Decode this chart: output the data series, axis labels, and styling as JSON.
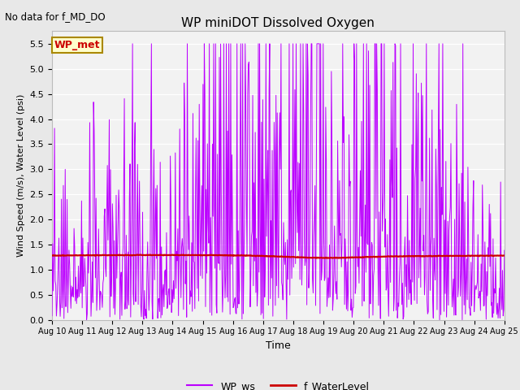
{
  "title": "WP miniDOT Dissolved Oxygen",
  "annotation": "No data for f_MD_DO",
  "xlabel": "Time",
  "ylabel": "Wind Speed (m/s), Water Level (psi)",
  "ylim": [
    0.0,
    5.75
  ],
  "yticks": [
    0.0,
    0.5,
    1.0,
    1.5,
    2.0,
    2.5,
    3.0,
    3.5,
    4.0,
    4.5,
    5.0,
    5.5
  ],
  "xtick_labels": [
    "Aug 10",
    "Aug 11",
    "Aug 12",
    "Aug 13",
    "Aug 14",
    "Aug 15",
    "Aug 16",
    "Aug 17",
    "Aug 18",
    "Aug 19",
    "Aug 20",
    "Aug 21",
    "Aug 22",
    "Aug 23",
    "Aug 24",
    "Aug 25"
  ],
  "legend_labels": [
    "WP_ws",
    "f_WaterLevel"
  ],
  "legend_colors": [
    "#BB00FF",
    "#CC0000"
  ],
  "wp_met_box_color": "#FFFFCC",
  "wp_met_text_color": "#CC0000",
  "wp_met_edge_color": "#AA8800",
  "fig_bg_color": "#E8E8E8",
  "plot_bg_color": "#F2F2F2",
  "ws_color": "#BB00FF",
  "water_color": "#CC0000",
  "ws_linewidth": 0.7,
  "water_linewidth": 1.6,
  "n_days": 15,
  "pts_per_day": 48
}
